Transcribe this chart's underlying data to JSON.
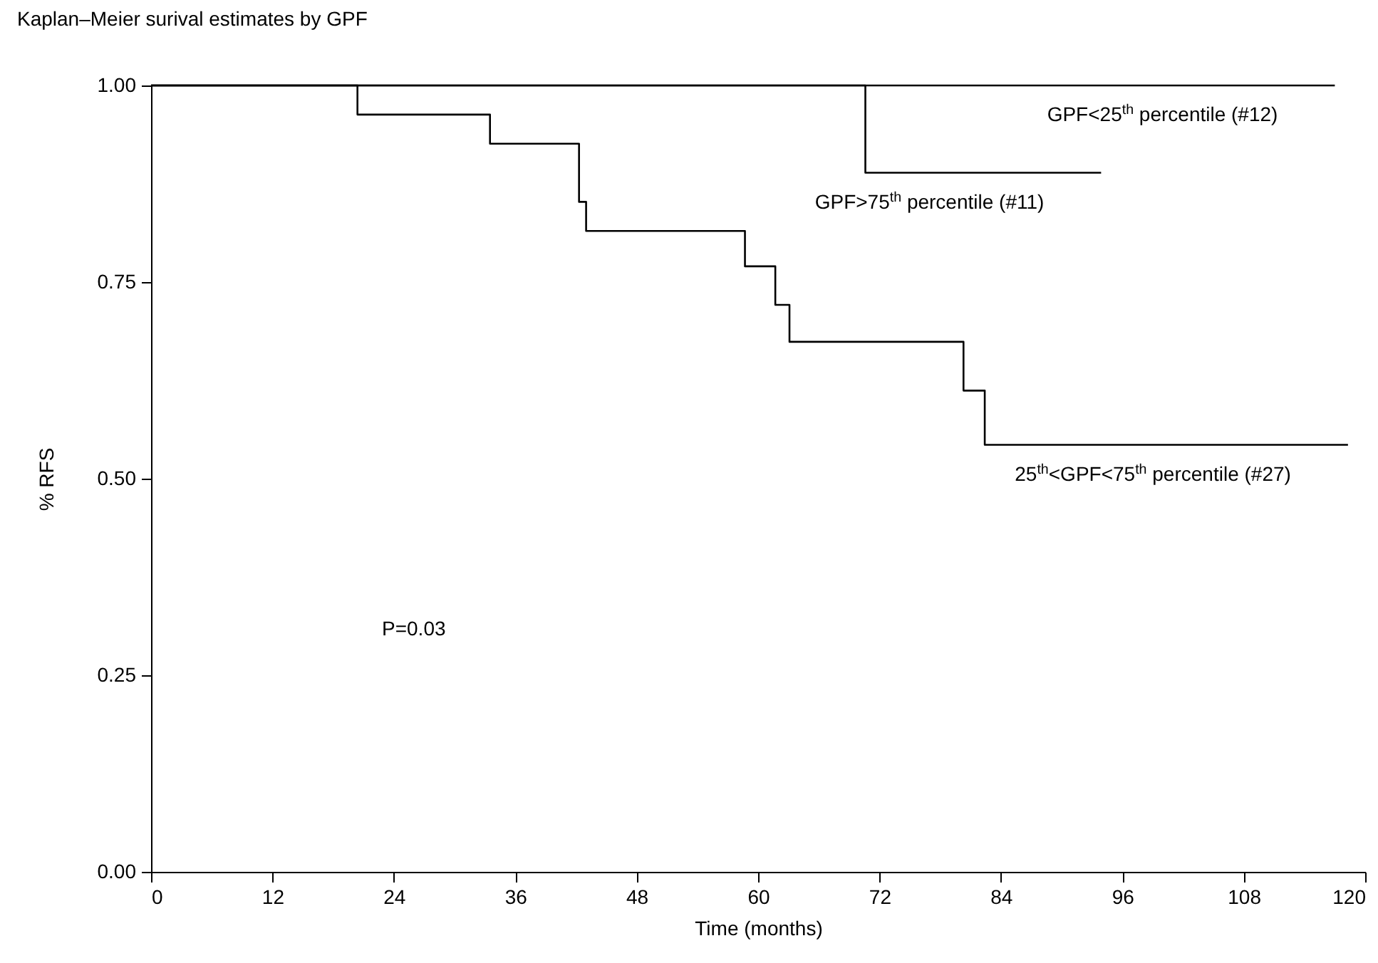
{
  "chart_data": {
    "type": "step",
    "title": "Kaplan–Meier surival estimates by GPF",
    "xlabel": "Time (months)",
    "ylabel": "% RFS",
    "xlim": [
      0,
      120
    ],
    "xticks": [
      0,
      12,
      24,
      36,
      48,
      60,
      72,
      84,
      96,
      108,
      120
    ],
    "ylim": [
      0,
      1
    ],
    "yticks": [
      {
        "value": 0,
        "label": "0.00"
      },
      {
        "value": 0.25,
        "label": "0.25"
      },
      {
        "value": 0.5,
        "label": "0.50"
      },
      {
        "value": 0.75,
        "label": "0.75"
      },
      {
        "value": 1,
        "label": "1.00"
      }
    ],
    "series": [
      {
        "name": "GPF<25$^{th}$ percentile (#12)",
        "color": "#000000",
        "x": [
          0,
          117
        ],
        "values": [
          1,
          1
        ]
      },
      {
        "name": "GPF>75$^{th}$ percentile (#11)",
        "color": "#000000",
        "x": [
          0,
          70.6,
          93.9
        ],
        "values": [
          1,
          0.889,
          0.889
        ]
      },
      {
        "name": "25$^{th}$<GPF<75$^{th}$ percentile (#27)",
        "color": "#000000",
        "x": [
          0,
          20.4,
          33.5,
          42.3,
          43.0,
          58.7,
          61.7,
          63.1,
          80.3,
          82.4,
          118.3
        ],
        "values": [
          1,
          0.963,
          0.926,
          0.852,
          0.815,
          0.77,
          0.721,
          0.674,
          0.612,
          0.543,
          0.543
        ]
      }
    ],
    "annotations": [
      "P=0.03"
    ]
  }
}
